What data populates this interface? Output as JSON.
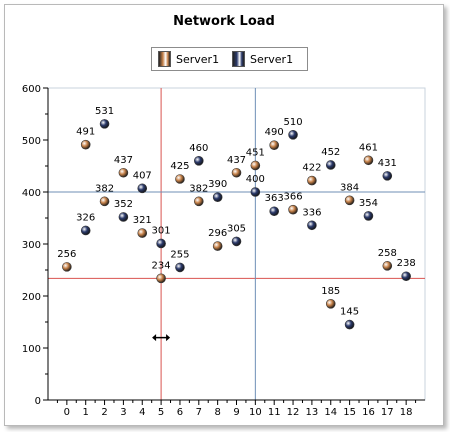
{
  "chart_data": {
    "type": "scatter",
    "title": "Network Load",
    "xlim": [
      -1,
      19
    ],
    "ylim": [
      0,
      600
    ],
    "x_ticks": [
      0,
      1,
      2,
      3,
      4,
      5,
      6,
      7,
      8,
      9,
      10,
      11,
      12,
      13,
      14,
      15,
      16,
      17,
      18
    ],
    "y_ticks": [
      0,
      100,
      200,
      300,
      400,
      500,
      600
    ],
    "legend_position": "top-center",
    "grid": false,
    "series": [
      {
        "name": "Server1",
        "color": "#c8834a",
        "points": [
          {
            "x": 0,
            "y": 256
          },
          {
            "x": 1,
            "y": 491
          },
          {
            "x": 2,
            "y": 382
          },
          {
            "x": 3,
            "y": 437
          },
          {
            "x": 4,
            "y": 321
          },
          {
            "x": 5,
            "y": 234
          },
          {
            "x": 6,
            "y": 425
          },
          {
            "x": 7,
            "y": 382
          },
          {
            "x": 8,
            "y": 296
          },
          {
            "x": 9,
            "y": 437
          },
          {
            "x": 10,
            "y": 451
          },
          {
            "x": 11,
            "y": 490
          },
          {
            "x": 12,
            "y": 366
          },
          {
            "x": 13,
            "y": 422
          },
          {
            "x": 14,
            "y": 185
          },
          {
            "x": 15,
            "y": 384
          },
          {
            "x": 16,
            "y": 461
          },
          {
            "x": 17,
            "y": 258
          }
        ]
      },
      {
        "name": "Server1",
        "color": "#2b3a6b",
        "points": [
          {
            "x": 1,
            "y": 326
          },
          {
            "x": 2,
            "y": 531
          },
          {
            "x": 3,
            "y": 352
          },
          {
            "x": 4,
            "y": 407
          },
          {
            "x": 5,
            "y": 301
          },
          {
            "x": 6,
            "y": 255
          },
          {
            "x": 7,
            "y": 460
          },
          {
            "x": 8,
            "y": 390
          },
          {
            "x": 9,
            "y": 305
          },
          {
            "x": 10,
            "y": 400
          },
          {
            "x": 11,
            "y": 363
          },
          {
            "x": 12,
            "y": 510
          },
          {
            "x": 13,
            "y": 336
          },
          {
            "x": 14,
            "y": 452
          },
          {
            "x": 15,
            "y": 145
          },
          {
            "x": 16,
            "y": 354
          },
          {
            "x": 17,
            "y": 431
          },
          {
            "x": 18,
            "y": 238
          }
        ]
      }
    ],
    "crosshairs": [
      {
        "orientation": "vertical",
        "x": 5,
        "color": "#d9534f"
      },
      {
        "orientation": "horizontal",
        "y": 234,
        "color": "#d9534f"
      },
      {
        "orientation": "vertical",
        "x": 10,
        "color": "#6f8fb6"
      },
      {
        "orientation": "horizontal",
        "y": 400,
        "color": "#6f8fb6"
      }
    ],
    "cursor_icon": "horizontal-resize-cursor-icon"
  }
}
